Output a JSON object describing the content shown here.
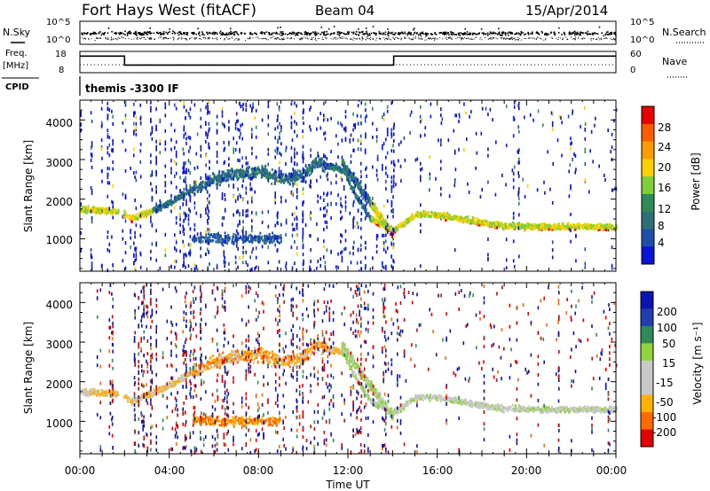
{
  "header": {
    "station": "Fort Hays West (fitACF)",
    "beam": "Beam 04",
    "date": "15/Apr/2014"
  },
  "chart_data": [
    {
      "type": "line",
      "panel": "sky-noise",
      "left_label": "N.Sky",
      "right_label": "N.Search",
      "left_ticks": [
        "10^5",
        "10^0"
      ],
      "right_ticks": [
        "10^5",
        "10^0"
      ]
    },
    {
      "type": "line",
      "panel": "frequency",
      "left_label": "Freq.",
      "left_unit": "[MHz]",
      "left_ticks": [
        "18",
        "8"
      ],
      "right_label": "Nave",
      "right_ticks": [
        "60",
        "0"
      ],
      "series": [
        {
          "name": "Freq.",
          "x": [
            0,
            2.0,
            2.0,
            14.05,
            14.05,
            24
          ],
          "y": [
            15.8,
            15.8,
            11.6,
            11.6,
            15.8,
            15.8
          ]
        }
      ]
    },
    {
      "type": "table",
      "panel": "cpid",
      "label": "CPID",
      "value": "themis -3300 IF"
    },
    {
      "type": "heatmap",
      "panel": "power",
      "ylabel": "Slant Range [km]",
      "yticks": [
        "1000",
        "2000",
        "3000",
        "4000"
      ],
      "colorbar_label": "Power [dB]",
      "colorbar_ticks": [
        "4",
        "8",
        "12",
        "16",
        "20",
        "24",
        "28"
      ],
      "ylim": [
        180,
        4500
      ],
      "xlim": [
        0,
        24
      ],
      "trace": {
        "x": [
          0,
          1,
          1.8,
          2.3,
          3,
          4,
          5,
          6,
          7,
          8,
          9,
          10,
          10.5,
          11.8,
          12.3,
          13,
          14,
          15,
          16,
          17,
          18,
          19,
          20,
          22,
          24
        ],
        "y": [
          1750,
          1700,
          1680,
          1500,
          1650,
          1900,
          2250,
          2500,
          2650,
          2700,
          2500,
          2600,
          2950,
          2700,
          2100,
          1500,
          1200,
          1600,
          1600,
          1500,
          1400,
          1320,
          1300,
          1300,
          1300
        ]
      }
    },
    {
      "type": "heatmap",
      "panel": "velocity",
      "ylabel": "Slant Range [km]",
      "yticks": [
        "1000",
        "2000",
        "3000",
        "4000"
      ],
      "colorbar_label": "Velocity [m s⁻¹]",
      "colorbar_ticks": [
        "200",
        "100",
        "50",
        "15",
        "-15",
        "-50",
        "-100",
        "-200"
      ],
      "xlabel": "Time UT",
      "xticks": [
        "00:00",
        "04:00",
        "08:00",
        "12:00",
        "16:00",
        "20:00",
        "00:00"
      ],
      "ylim": [
        180,
        4500
      ],
      "xlim": [
        0,
        24
      ]
    }
  ],
  "colors": {
    "power_scale": [
      "#0a14d8",
      "#1f4fae",
      "#2f6f78",
      "#2e8b57",
      "#7fcf3a",
      "#ffd000",
      "#ff9a00",
      "#ff5a00",
      "#e80000"
    ],
    "velocity_scale": [
      "#e00000",
      "#ff6a00",
      "#ffb000",
      "#c8c8c8",
      "#c8c8c8",
      "#8fd43a",
      "#2e8b57",
      "#1f3fae",
      "#0a14b0"
    ]
  }
}
